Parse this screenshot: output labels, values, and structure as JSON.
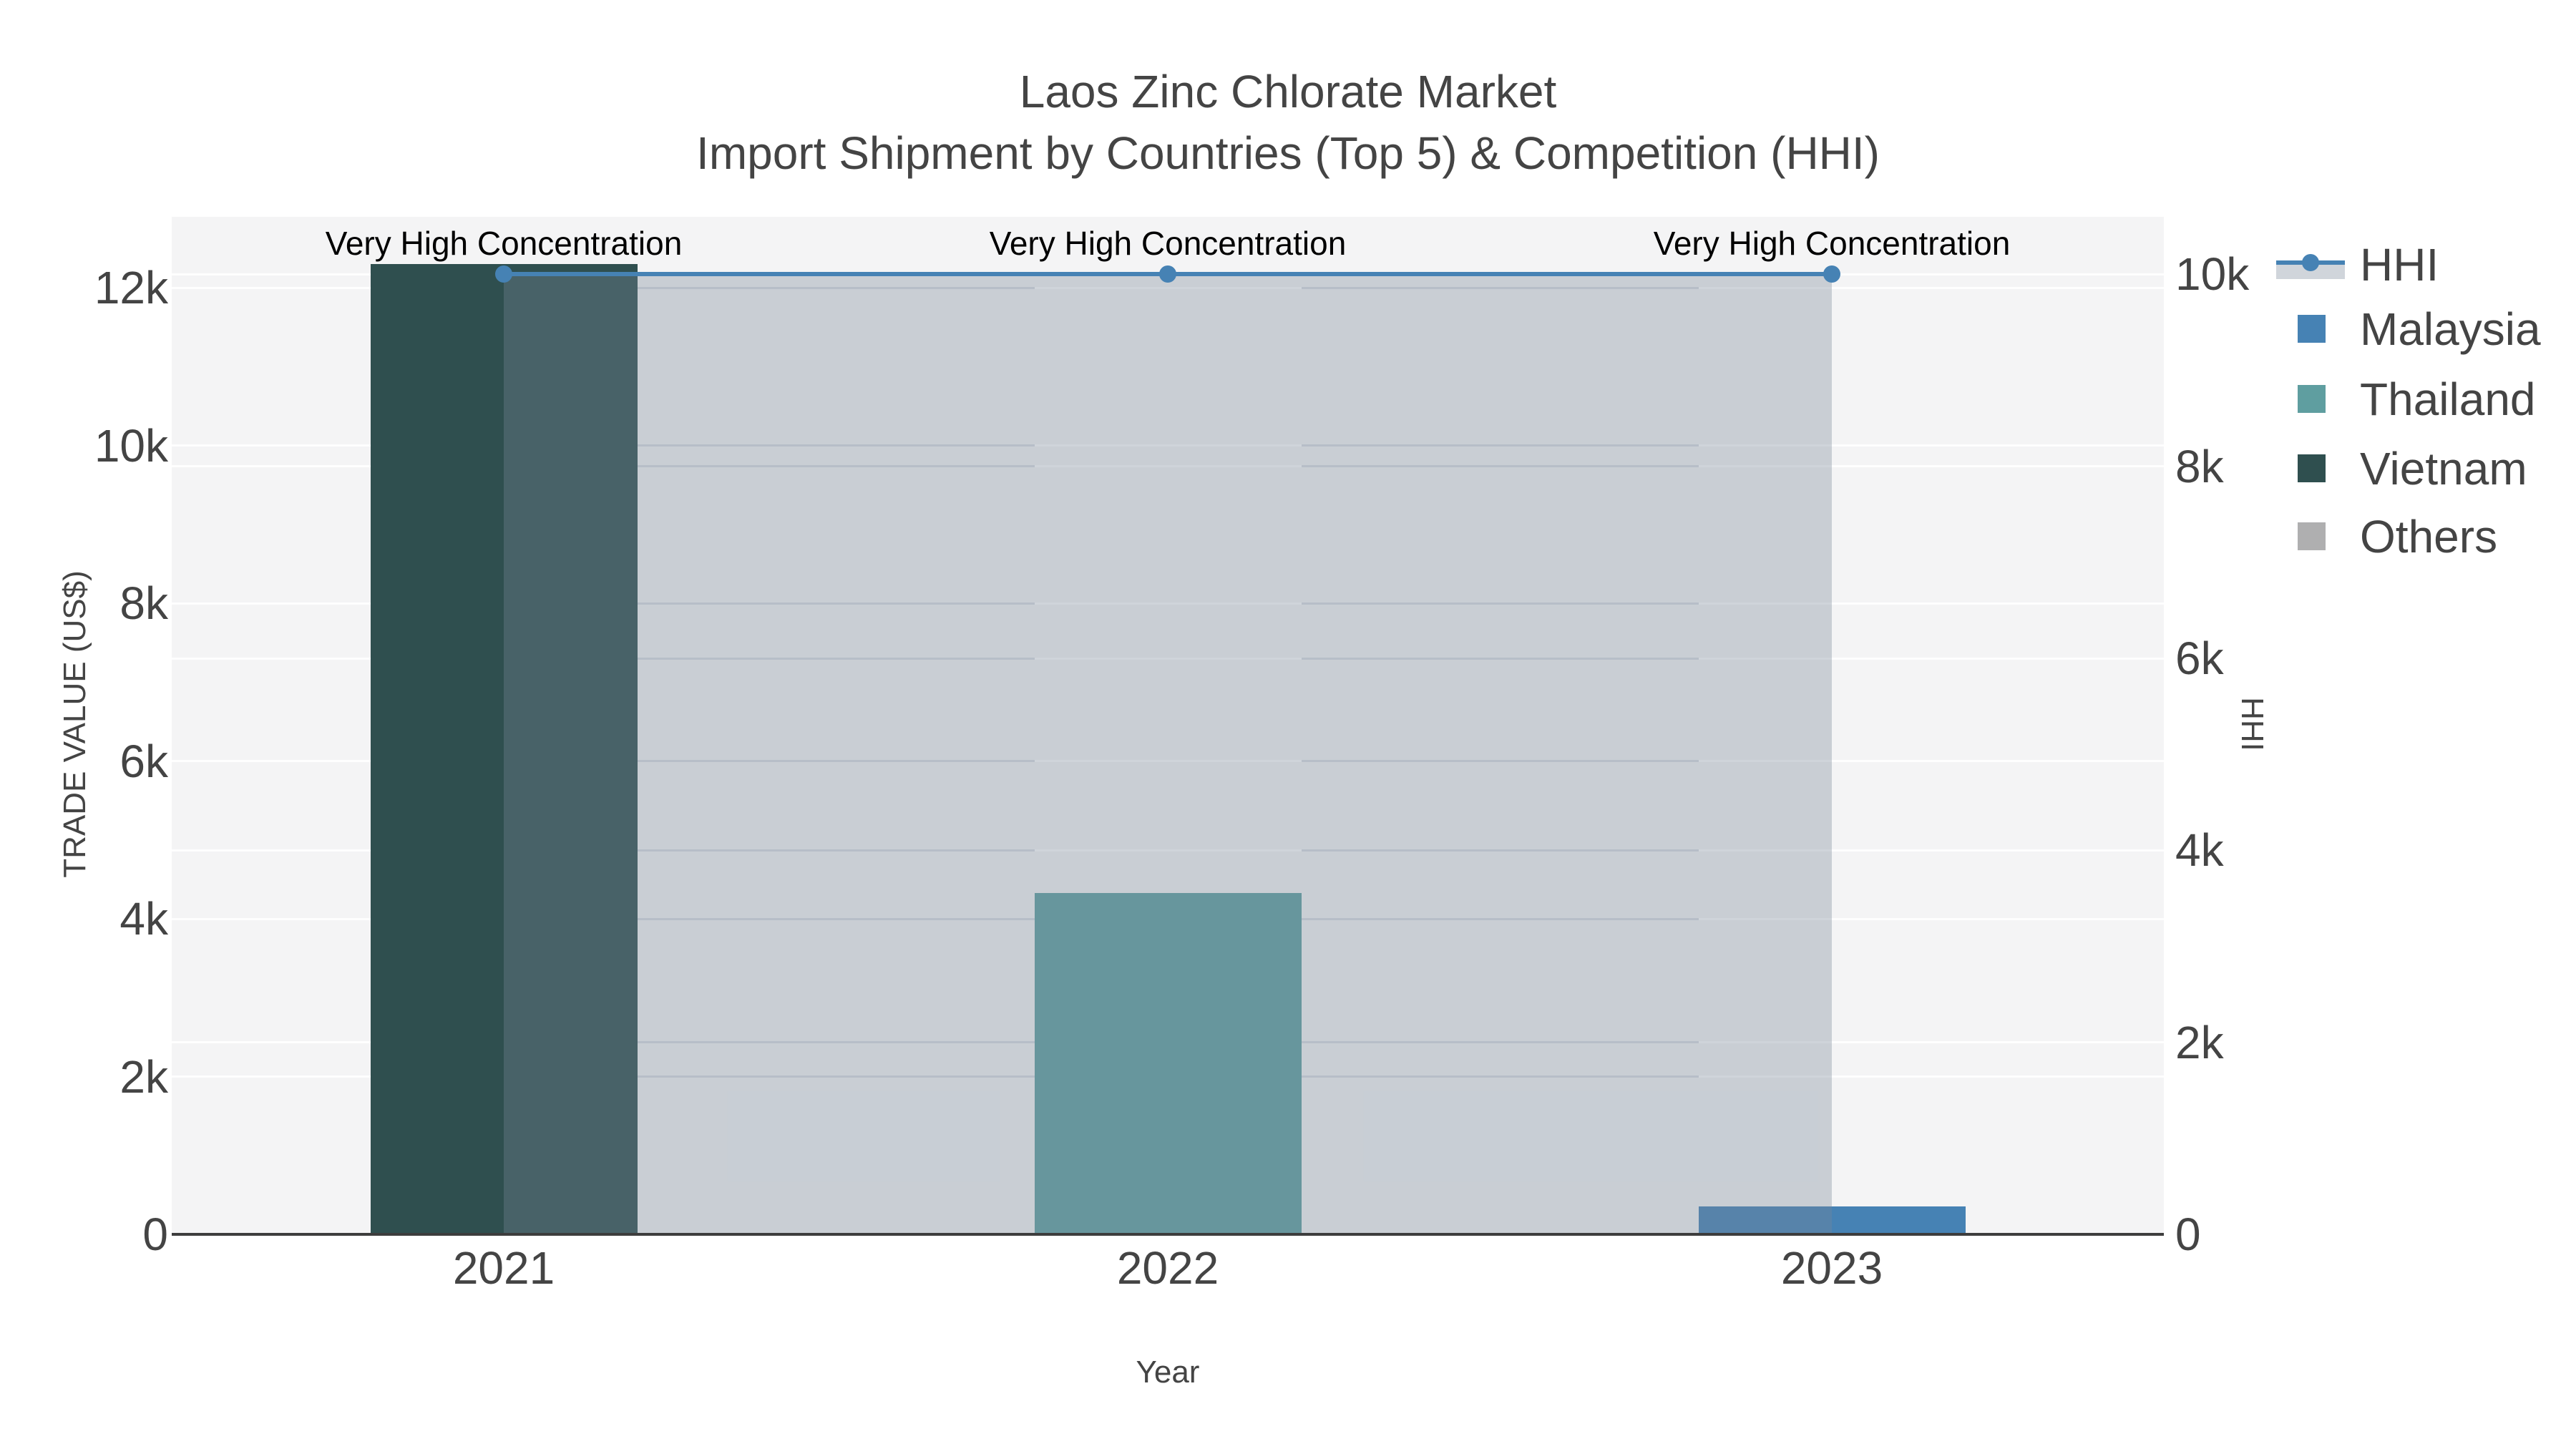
{
  "chart_data": {
    "type": "bar+line",
    "title": "Laos Zinc Chlorate Market",
    "subtitle": "Import Shipment by Countries (Top 5) & Competition (HHI)",
    "categories": [
      "2021",
      "2022",
      "2023"
    ],
    "xlabel": "Year",
    "y_left": {
      "label": "TRADE VALUE (US$)",
      "ticks": [
        "0",
        "2k",
        "4k",
        "6k",
        "8k",
        "10k",
        "12k"
      ],
      "tick_values": [
        0,
        2000,
        4000,
        6000,
        8000,
        10000,
        12000
      ],
      "max": 12900
    },
    "y_right": {
      "label": "HHI",
      "ticks": [
        "0",
        "2k",
        "4k",
        "6k",
        "8k",
        "10k"
      ],
      "tick_values": [
        0,
        2000,
        4000,
        6000,
        8000,
        10000
      ],
      "max": 10600
    },
    "series": [
      {
        "name": "Malaysia",
        "color": "#4682B4",
        "values": [
          null,
          null,
          350
        ]
      },
      {
        "name": "Thailand",
        "color": "#5F9EA0",
        "values": [
          null,
          4330,
          null
        ]
      },
      {
        "name": "Vietnam",
        "color": "#2F4F4F",
        "values": [
          12300,
          null,
          null
        ]
      },
      {
        "name": "Others",
        "color": "#AFAFB0",
        "values": [
          null,
          null,
          null
        ]
      }
    ],
    "hhi_series": {
      "name": "HHI",
      "line_color": "#4682B4",
      "fill_color": "rgba(119,136,153,0.35)",
      "values": [
        10000,
        10000,
        10000
      ]
    },
    "annotations": [
      "Very High Concentration",
      "Very High Concentration",
      "Very High Concentration"
    ],
    "legend": [
      {
        "label": "HHI",
        "type": "line-area"
      },
      {
        "label": "Malaysia",
        "type": "square",
        "color": "#4682B4"
      },
      {
        "label": "Thailand",
        "type": "square",
        "color": "#5F9EA0"
      },
      {
        "label": "Vietnam",
        "type": "square",
        "color": "#2F4F4F"
      },
      {
        "label": "Others",
        "type": "square",
        "color": "#AFAFB0"
      }
    ],
    "grid": true,
    "legend_position": "right"
  }
}
